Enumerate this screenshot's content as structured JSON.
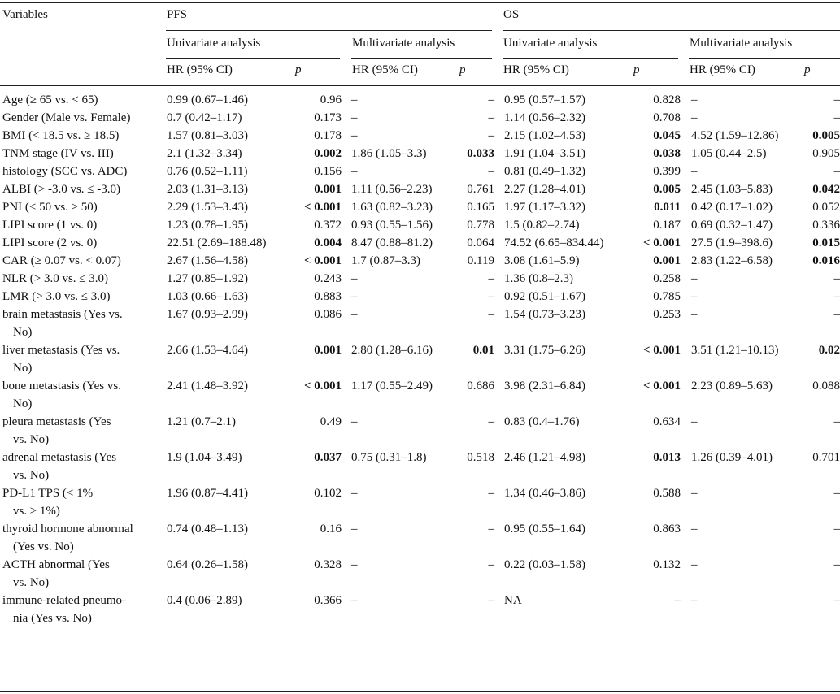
{
  "header": {
    "variables": "Variables",
    "pfs": "PFS",
    "os": "OS",
    "univariate": "Univariate analysis",
    "multivariate": "Multivariate analysis",
    "hr": "HR (95% CI)",
    "p": "p"
  },
  "rows": [
    {
      "var": [
        "Age (≥ 65 vs. < 65)"
      ],
      "pfs_u_hr": "0.99 (0.67–1.46)",
      "pfs_u_p": "0.96",
      "pfs_m_hr": "–",
      "pfs_m_p": "–",
      "os_u_hr": "0.95 (0.57–1.57)",
      "os_u_p": "0.828",
      "os_m_hr": "–",
      "os_m_p": "–",
      "bold": []
    },
    {
      "var": [
        "Gender (Male vs. Female)"
      ],
      "pfs_u_hr": "0.7 (0.42–1.17)",
      "pfs_u_p": "0.173",
      "pfs_m_hr": "–",
      "pfs_m_p": "–",
      "os_u_hr": "1.14 (0.56–2.32)",
      "os_u_p": "0.708",
      "os_m_hr": "–",
      "os_m_p": "–",
      "bold": []
    },
    {
      "var": [
        "BMI (< 18.5 vs. ≥ 18.5)"
      ],
      "pfs_u_hr": "1.57 (0.81–3.03)",
      "pfs_u_p": "0.178",
      "pfs_m_hr": "–",
      "pfs_m_p": "–",
      "os_u_hr": "2.15 (1.02–4.53)",
      "os_u_p": "0.045",
      "os_m_hr": "4.52 (1.59–12.86)",
      "os_m_p": "0.005",
      "bold": [
        "os_u_p",
        "os_m_p"
      ]
    },
    {
      "var": [
        "TNM stage (IV vs. III)"
      ],
      "pfs_u_hr": "2.1 (1.32–3.34)",
      "pfs_u_p": "0.002",
      "pfs_m_hr": "1.86 (1.05–3.3)",
      "pfs_m_p": "0.033",
      "os_u_hr": "1.91 (1.04–3.51)",
      "os_u_p": "0.038",
      "os_m_hr": "1.05 (0.44–2.5)",
      "os_m_p": "0.905",
      "bold": [
        "pfs_u_p",
        "pfs_m_p",
        "os_u_p"
      ]
    },
    {
      "var": [
        "histology (SCC vs. ADC)"
      ],
      "pfs_u_hr": "0.76 (0.52–1.11)",
      "pfs_u_p": "0.156",
      "pfs_m_hr": "–",
      "pfs_m_p": "–",
      "os_u_hr": "0.81 (0.49–1.32)",
      "os_u_p": "0.399",
      "os_m_hr": "–",
      "os_m_p": "–",
      "bold": []
    },
    {
      "var": [
        "ALBI (> -3.0 vs. ≤ -3.0)"
      ],
      "pfs_u_hr": "2.03 (1.31–3.13)",
      "pfs_u_p": "0.001",
      "pfs_m_hr": "1.11 (0.56–2.23)",
      "pfs_m_p": "0.761",
      "os_u_hr": "2.27 (1.28–4.01)",
      "os_u_p": "0.005",
      "os_m_hr": "2.45 (1.03–5.83)",
      "os_m_p": "0.042",
      "bold": [
        "pfs_u_p",
        "os_u_p",
        "os_m_p"
      ]
    },
    {
      "var": [
        "PNI (< 50 vs. ≥ 50)"
      ],
      "pfs_u_hr": "2.29 (1.53–3.43)",
      "pfs_u_p": "< 0.001",
      "pfs_m_hr": "1.63 (0.82–3.23)",
      "pfs_m_p": "0.165",
      "os_u_hr": "1.97 (1.17–3.32)",
      "os_u_p": "0.011",
      "os_m_hr": "0.42 (0.17–1.02)",
      "os_m_p": "0.052",
      "bold": [
        "pfs_u_p",
        "os_u_p"
      ]
    },
    {
      "var": [
        "LIPI score (1 vs. 0)"
      ],
      "pfs_u_hr": "1.23 (0.78–1.95)",
      "pfs_u_p": "0.372",
      "pfs_m_hr": "0.93 (0.55–1.56)",
      "pfs_m_p": "0.778",
      "os_u_hr": "1.5 (0.82–2.74)",
      "os_u_p": "0.187",
      "os_m_hr": "0.69 (0.32–1.47)",
      "os_m_p": "0.336",
      "bold": []
    },
    {
      "var": [
        "LIPI score (2 vs. 0)"
      ],
      "pfs_u_hr": "22.51 (2.69–188.48)",
      "pfs_u_p": "0.004",
      "pfs_m_hr": "8.47 (0.88–81.2)",
      "pfs_m_p": "0.064",
      "os_u_hr": "74.52 (6.65–834.44)",
      "os_u_p": "< 0.001",
      "os_m_hr": "27.5 (1.9–398.6)",
      "os_m_p": "0.015",
      "bold": [
        "pfs_u_p",
        "os_u_p",
        "os_m_p"
      ]
    },
    {
      "var": [
        "CAR (≥ 0.07 vs. < 0.07)"
      ],
      "pfs_u_hr": "2.67 (1.56–4.58)",
      "pfs_u_p": "< 0.001",
      "pfs_m_hr": "1.7 (0.87–3.3)",
      "pfs_m_p": "0.119",
      "os_u_hr": "3.08 (1.61–5.9)",
      "os_u_p": "0.001",
      "os_m_hr": "2.83 (1.22–6.58)",
      "os_m_p": "0.016",
      "bold": [
        "pfs_u_p",
        "os_u_p",
        "os_m_p"
      ]
    },
    {
      "var": [
        "NLR (> 3.0 vs. ≤ 3.0)"
      ],
      "pfs_u_hr": "1.27 (0.85–1.92)",
      "pfs_u_p": "0.243",
      "pfs_m_hr": "–",
      "pfs_m_p": "–",
      "os_u_hr": "1.36 (0.8–2.3)",
      "os_u_p": "0.258",
      "os_m_hr": "–",
      "os_m_p": "–",
      "bold": []
    },
    {
      "var": [
        "LMR (> 3.0 vs. ≤ 3.0)"
      ],
      "pfs_u_hr": "1.03 (0.66–1.63)",
      "pfs_u_p": "0.883",
      "pfs_m_hr": "–",
      "pfs_m_p": "–",
      "os_u_hr": "0.92 (0.51–1.67)",
      "os_u_p": "0.785",
      "os_m_hr": "–",
      "os_m_p": "–",
      "bold": []
    },
    {
      "var": [
        "brain metastasis (Yes vs.",
        "No)"
      ],
      "pfs_u_hr": "1.67 (0.93–2.99)",
      "pfs_u_p": "0.086",
      "pfs_m_hr": "–",
      "pfs_m_p": "–",
      "os_u_hr": "1.54 (0.73–3.23)",
      "os_u_p": "0.253",
      "os_m_hr": "–",
      "os_m_p": "–",
      "bold": []
    },
    {
      "var": [
        "liver metastasis (Yes vs.",
        "No)"
      ],
      "pfs_u_hr": "2.66 (1.53–4.64)",
      "pfs_u_p": "0.001",
      "pfs_m_hr": "2.80 (1.28–6.16)",
      "pfs_m_p": "0.01",
      "os_u_hr": "3.31 (1.75–6.26)",
      "os_u_p": "< 0.001",
      "os_m_hr": "3.51 (1.21–10.13)",
      "os_m_p": "0.02",
      "bold": [
        "pfs_u_p",
        "pfs_m_p",
        "os_u_p",
        "os_m_p"
      ]
    },
    {
      "var": [
        "bone metastasis (Yes vs.",
        "No)"
      ],
      "pfs_u_hr": "2.41 (1.48–3.92)",
      "pfs_u_p": "< 0.001",
      "pfs_m_hr": "1.17 (0.55–2.49)",
      "pfs_m_p": "0.686",
      "os_u_hr": "3.98 (2.31–6.84)",
      "os_u_p": "< 0.001",
      "os_m_hr": "2.23 (0.89–5.63)",
      "os_m_p": "0.088",
      "bold": [
        "pfs_u_p",
        "os_u_p"
      ]
    },
    {
      "var": [
        "pleura metastasis (Yes",
        "vs. No)"
      ],
      "pfs_u_hr": "1.21 (0.7–2.1)",
      "pfs_u_p": "0.49",
      "pfs_m_hr": "–",
      "pfs_m_p": "–",
      "os_u_hr": "0.83 (0.4–1.76)",
      "os_u_p": "0.634",
      "os_m_hr": "–",
      "os_m_p": "–",
      "bold": []
    },
    {
      "var": [
        "adrenal metastasis (Yes",
        "vs. No)"
      ],
      "pfs_u_hr": "1.9 (1.04–3.49)",
      "pfs_u_p": "0.037",
      "pfs_m_hr": "0.75 (0.31–1.8)",
      "pfs_m_p": "0.518",
      "os_u_hr": "2.46 (1.21–4.98)",
      "os_u_p": "0.013",
      "os_m_hr": "1.26 (0.39–4.01)",
      "os_m_p": "0.701",
      "bold": [
        "pfs_u_p",
        "os_u_p"
      ]
    },
    {
      "var": [
        "PD-L1 TPS (< 1%",
        "vs. ≥ 1%)"
      ],
      "pfs_u_hr": "1.96 (0.87–4.41)",
      "pfs_u_p": "0.102",
      "pfs_m_hr": "–",
      "pfs_m_p": "–",
      "os_u_hr": "1.34 (0.46–3.86)",
      "os_u_p": "0.588",
      "os_m_hr": "–",
      "os_m_p": "–",
      "bold": []
    },
    {
      "var": [
        "thyroid hormone abnormal",
        "(Yes vs. No)"
      ],
      "pfs_u_hr": "0.74 (0.48–1.13)",
      "pfs_u_p": "0.16",
      "pfs_m_hr": "–",
      "pfs_m_p": "–",
      "os_u_hr": "0.95 (0.55–1.64)",
      "os_u_p": "0.863",
      "os_m_hr": "–",
      "os_m_p": "–",
      "bold": []
    },
    {
      "var": [
        "ACTH abnormal (Yes",
        "vs. No)"
      ],
      "pfs_u_hr": "0.64 (0.26–1.58)",
      "pfs_u_p": "0.328",
      "pfs_m_hr": "–",
      "pfs_m_p": "–",
      "os_u_hr": "0.22 (0.03–1.58)",
      "os_u_p": "0.132",
      "os_m_hr": "–",
      "os_m_p": "–",
      "bold": []
    },
    {
      "var": [
        "immune-related pneumo-",
        "nia (Yes vs. No)"
      ],
      "pfs_u_hr": "0.4 (0.06–2.89)",
      "pfs_u_p": "0.366",
      "pfs_m_hr": "–",
      "pfs_m_p": "–",
      "os_u_hr": "NA",
      "os_u_p": "–",
      "os_m_hr": "–",
      "os_m_p": "–",
      "bold": []
    }
  ]
}
